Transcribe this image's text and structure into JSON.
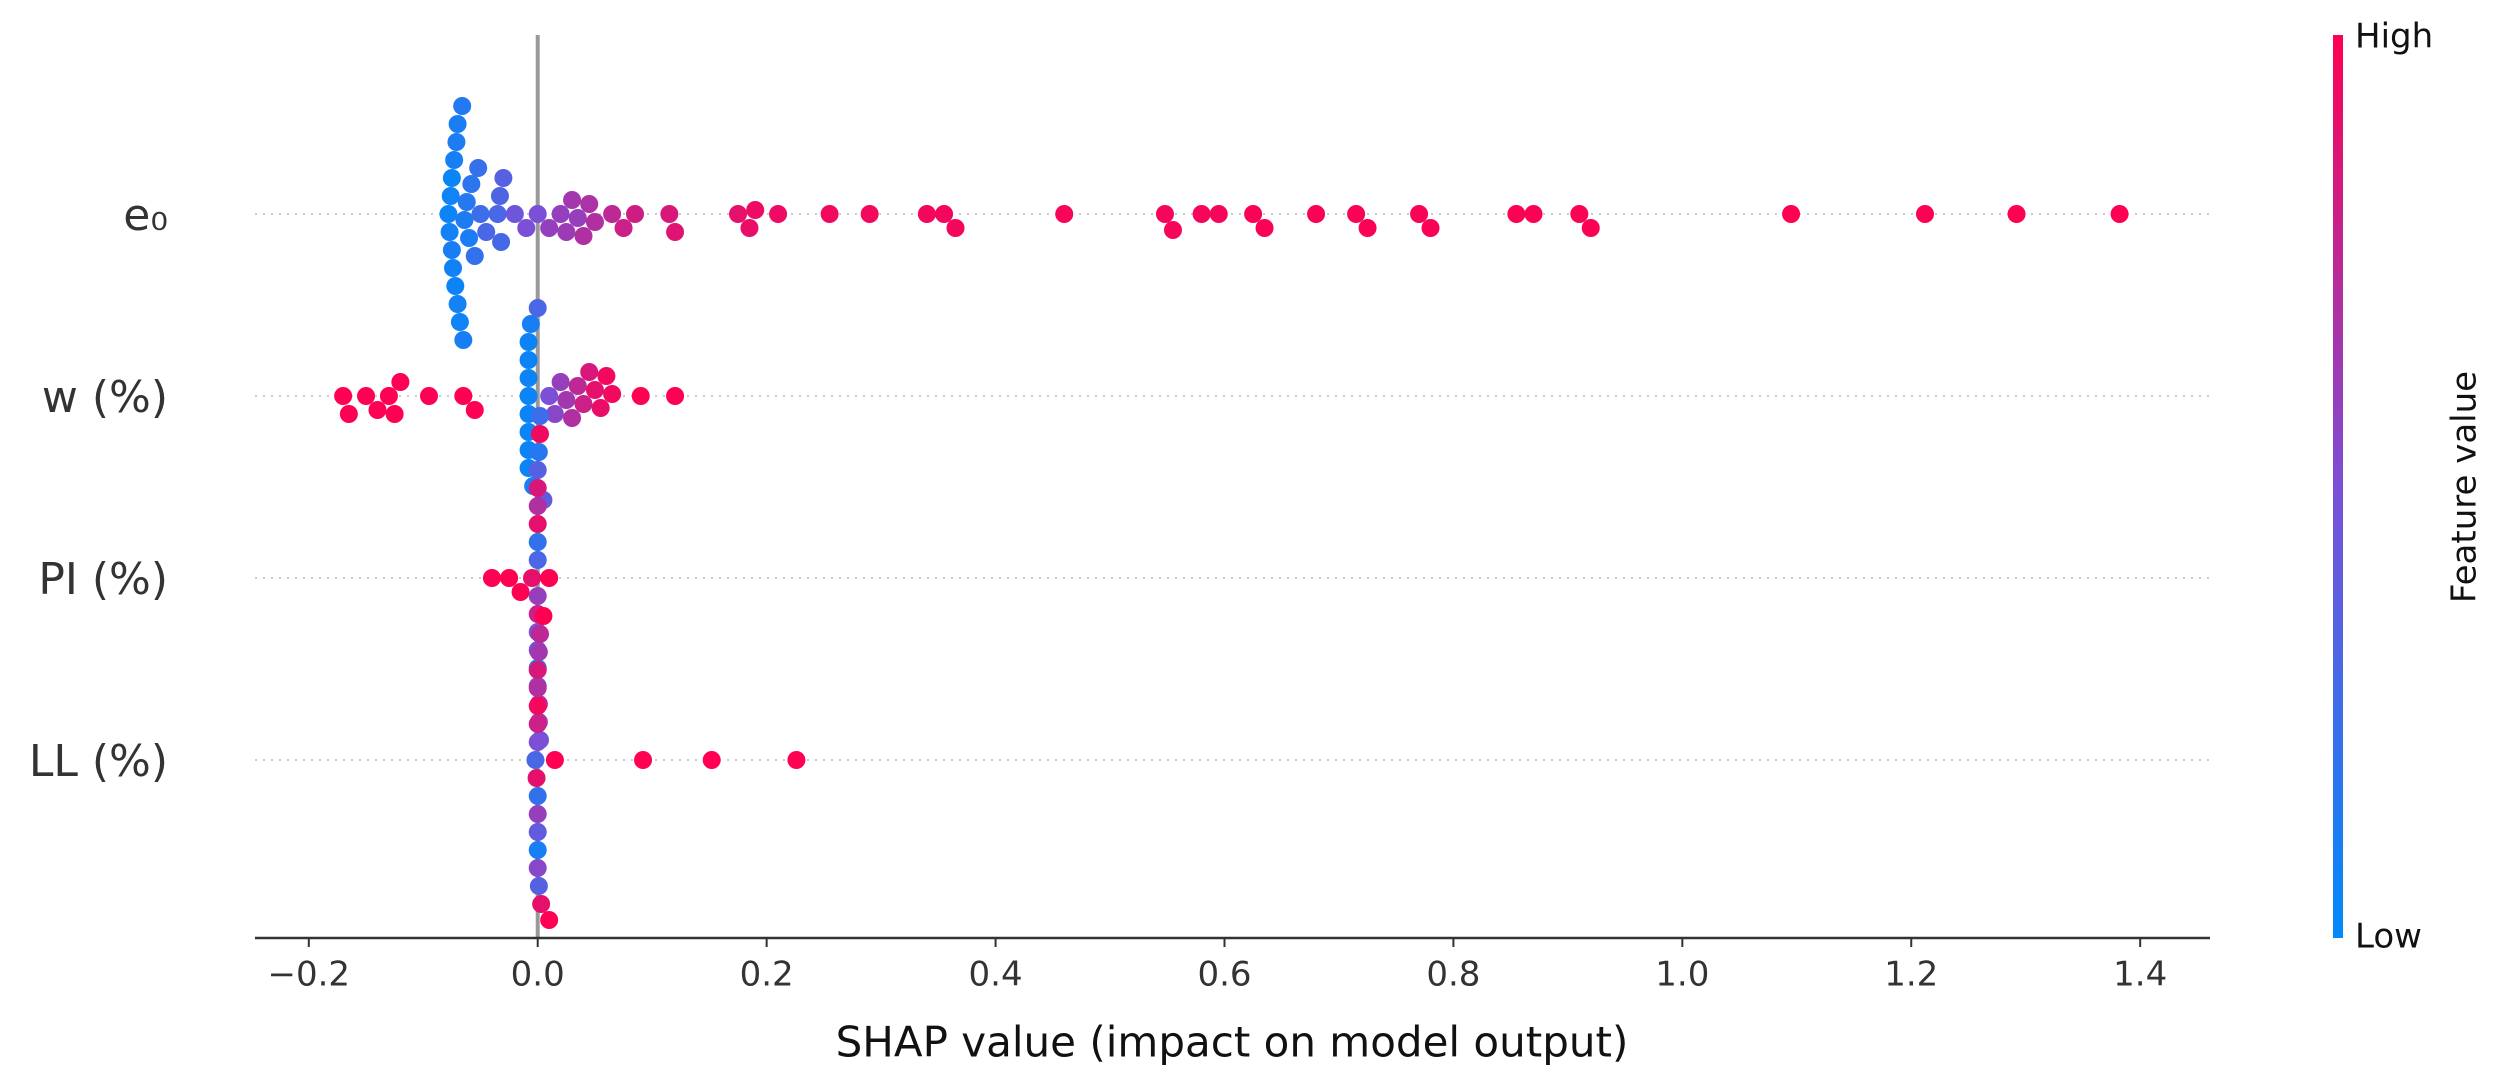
{
  "chart_data": {
    "type": "beeswarm",
    "x_label": "SHAP value (impact on model output)",
    "xlim": [
      -0.247,
      1.461
    ],
    "xticks": [
      {
        "value": -0.2,
        "label": "−0.2"
      },
      {
        "value": 0,
        "label": "0.0"
      },
      0.2,
      0.4,
      0.6,
      0.8,
      {
        "value": 1,
        "label": "1.0"
      },
      1.2,
      1.4
    ],
    "grid": true,
    "colorbar": {
      "label": "Feature value",
      "high_label": "High",
      "low_label": "Low",
      "colors": [
        "#008afb",
        "#7b4fd6",
        "#ff0052"
      ]
    },
    "series": [
      {
        "name": "e₀",
        "values": [
          -0.078,
          -0.077,
          -0.076,
          -0.075,
          -0.075,
          -0.074,
          -0.073,
          -0.072,
          -0.071,
          -0.07,
          -0.07,
          -0.068,
          -0.066,
          -0.065,
          -0.064,
          -0.062,
          -0.06,
          -0.058,
          -0.055,
          -0.052,
          -0.05,
          -0.045,
          -0.035,
          -0.033,
          -0.032,
          -0.03,
          -0.02,
          -0.01,
          0.0,
          0.01,
          0.02,
          0.025,
          0.03,
          0.035,
          0.04,
          0.045,
          0.05,
          0.065,
          0.075,
          0.085,
          0.115,
          0.12,
          0.175,
          0.185,
          0.19,
          0.21,
          0.255,
          0.29,
          0.34,
          0.355,
          0.365,
          0.46,
          0.548,
          0.555,
          0.58,
          0.595,
          0.625,
          0.635,
          0.68,
          0.715,
          0.725,
          0.77,
          0.78,
          0.855,
          0.87,
          0.91,
          0.92,
          1.095,
          1.212,
          1.292,
          1.382
        ],
        "feature_values": [
          0.05,
          0.08,
          0.06,
          0.1,
          0.04,
          0.07,
          0.09,
          0.05,
          0.12,
          0.08,
          0.1,
          0.06,
          0.14,
          0.1,
          0.12,
          0.15,
          0.11,
          0.18,
          0.2,
          0.22,
          0.25,
          0.3,
          0.3,
          0.32,
          0.28,
          0.35,
          0.45,
          0.5,
          0.5,
          0.6,
          0.6,
          0.62,
          0.65,
          0.6,
          0.7,
          0.68,
          0.7,
          0.75,
          0.8,
          0.82,
          0.85,
          0.88,
          0.9,
          0.92,
          0.93,
          0.93,
          0.95,
          0.95,
          0.96,
          0.96,
          0.96,
          0.97,
          0.97,
          0.97,
          0.97,
          0.97,
          0.98,
          0.98,
          0.98,
          0.98,
          0.98,
          0.98,
          0.98,
          0.99,
          0.99,
          0.99,
          0.99,
          1,
          1,
          1,
          1
        ]
      },
      {
        "name": "w (%)",
        "values": [
          -0.17,
          -0.165,
          -0.15,
          -0.14,
          -0.13,
          -0.125,
          -0.12,
          -0.095,
          -0.065,
          -0.055,
          -0.008,
          -0.008,
          -0.008,
          -0.008,
          -0.008,
          -0.008,
          -0.008,
          -0.008,
          -0.006,
          -0.004,
          0.0,
          0.005,
          0.01,
          0.015,
          0.02,
          0.025,
          0.03,
          0.035,
          0.04,
          0.045,
          0.05,
          0.055,
          0.06,
          0.065,
          0.09,
          0.12
        ],
        "feature_values": [
          1,
          1,
          1,
          1,
          1,
          1,
          1,
          1,
          1,
          1,
          0.05,
          0.05,
          0.05,
          0.05,
          0.05,
          0.05,
          0.05,
          0.05,
          0.1,
          0.1,
          0.3,
          0.4,
          0.5,
          0.55,
          0.6,
          0.65,
          0.7,
          0.75,
          0.8,
          0.85,
          0.9,
          0.92,
          0.95,
          0.95,
          1,
          1
        ]
      },
      {
        "name": "PI (%)",
        "values": [
          -0.04,
          -0.025,
          -0.015,
          -0.005,
          0.0,
          0.0,
          0.0,
          0.0,
          0.0,
          0.0,
          0.0,
          0.0,
          0.0,
          0.0,
          0.0,
          0.0,
          0.001,
          0.001,
          0.001,
          0.002,
          0.002,
          0.002,
          0.01
        ],
        "feature_values": [
          1,
          1,
          1,
          0.9,
          0.6,
          0.3,
          0.8,
          0.2,
          0.5,
          0.9,
          0.4,
          0.7,
          0.1,
          0.85,
          0.55,
          0.35,
          0.75,
          0.15,
          0.65,
          0.95,
          0.45,
          0.25,
          1
        ]
      },
      {
        "name": "LL (%)",
        "values": [
          -0.002,
          -0.001,
          0.0,
          0.0,
          0.0,
          0.0,
          0.0,
          0.0,
          0.0,
          0.0,
          0.0,
          0.0,
          0.001,
          0.001,
          0.002,
          0.003,
          0.005,
          0.01,
          0.015,
          0.092,
          0.152,
          0.226
        ],
        "feature_values": [
          0.3,
          0.9,
          0.5,
          0.2,
          0.8,
          0.6,
          0.95,
          0.4,
          0.7,
          0.1,
          0.85,
          0.55,
          0.65,
          0.35,
          0.75,
          0.9,
          1,
          1,
          1,
          1,
          1,
          1
        ]
      }
    ]
  }
}
